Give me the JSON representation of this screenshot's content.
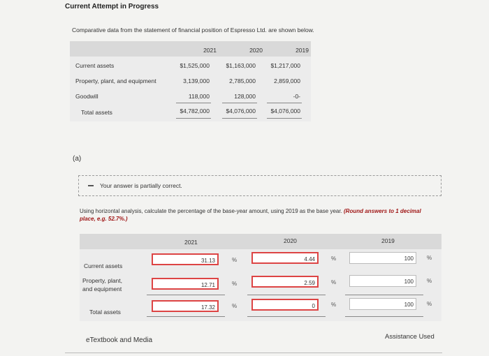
{
  "page_title": "Current Attempt in Progress",
  "intro": "Comparative data from the statement of financial position of Espresso Ltd. are shown below.",
  "comparative": {
    "years": [
      "2021",
      "2020",
      "2019"
    ],
    "rows": [
      {
        "label": "Current assets",
        "values": [
          "$1,525,000",
          "$1,163,000",
          "$1,217,000"
        ]
      },
      {
        "label": "Property, plant, and equipment",
        "values": [
          "3,139,000",
          "2,785,000",
          "2,859,000"
        ]
      },
      {
        "label": "Goodwill",
        "values": [
          "118,000",
          "128,000",
          "-0-"
        ]
      },
      {
        "label": "Total assets",
        "values": [
          "$4,782,000",
          "$4,076,000",
          "$4,076,000"
        ]
      }
    ]
  },
  "part_label": "(a)",
  "feedback_text": "Your answer is partially correct.",
  "instructions": {
    "text": "Using horizontal analysis, calculate the percentage of the base-year amount, using 2019 as the base year. ",
    "hint": "(Round answers to 1 decimal place, e.g. 52.7%.)"
  },
  "answers": {
    "years": [
      "2021",
      "2020",
      "2019"
    ],
    "percent_sign": "%",
    "rows": [
      {
        "label": "Current assets",
        "values": [
          "31.13",
          "4.44",
          "100"
        ]
      },
      {
        "label_line1": "Property, plant,",
        "label_line2": "and equipment",
        "values": [
          "12.71",
          "2.59",
          "100"
        ]
      },
      {
        "label": "Total assets",
        "values": [
          "17.32",
          "0",
          "100"
        ]
      }
    ]
  },
  "etextbook_label": "eTextbook and Media",
  "assistance_label": "Assistance Used"
}
